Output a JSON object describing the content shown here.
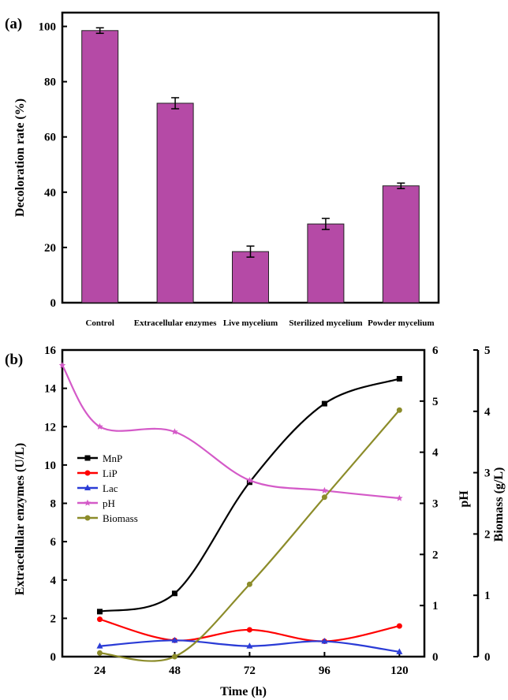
{
  "chart_data": [
    {
      "panel_label": "(a)",
      "type": "bar",
      "categories": [
        "Control",
        "Extracellular enzymes",
        "Live mycelium",
        "Sterilized mycelium",
        "Powder mycelium"
      ],
      "values": [
        98.5,
        72.2,
        18.5,
        28.5,
        42.3
      ],
      "errors": [
        1.0,
        2.0,
        2.0,
        2.0,
        1.0
      ],
      "ylabel": "Decoloration rate (%)",
      "xlabel": "",
      "ylim": [
        0,
        105
      ],
      "yticks": [
        "0",
        "20",
        "40",
        "60",
        "80",
        "100"
      ],
      "bar_color": "#b54aa6",
      "grid": false
    },
    {
      "panel_label": "(b)",
      "type": "line",
      "xlabel": "Time (h)",
      "xlim": [
        12,
        128
      ],
      "xticks": [
        "24",
        "48",
        "72",
        "96",
        "120"
      ],
      "legend_position": "left-center",
      "y_axes": [
        {
          "label": "Extracellular enzymes (U/L)",
          "ylim": [
            0,
            16
          ],
          "ticks": [
            "0",
            "2",
            "4",
            "6",
            "8",
            "10",
            "12",
            "14",
            "16"
          ]
        },
        {
          "label": "pH",
          "ylim": [
            0,
            6
          ],
          "ticks": [
            "0",
            "1",
            "2",
            "3",
            "4",
            "5",
            "6"
          ]
        },
        {
          "label": "Biomass (g/L)",
          "ylim": [
            0,
            5
          ],
          "ticks": [
            "0",
            "1",
            "2",
            "3",
            "4",
            "5"
          ]
        }
      ],
      "series": [
        {
          "name": "MnP",
          "color": "#000000",
          "marker": "square",
          "axis": 0,
          "x": [
            24,
            48,
            72,
            96,
            120
          ],
          "y": [
            2.35,
            3.3,
            9.1,
            13.2,
            14.5
          ]
        },
        {
          "name": "LiP",
          "color": "#ff0000",
          "marker": "circle",
          "axis": 0,
          "x": [
            24,
            48,
            72,
            96,
            120
          ],
          "y": [
            1.95,
            0.85,
            1.4,
            0.8,
            1.6
          ]
        },
        {
          "name": "Lac",
          "color": "#2a3bd6",
          "marker": "triangle",
          "axis": 0,
          "x": [
            24,
            48,
            72,
            96,
            120
          ],
          "y": [
            0.55,
            0.85,
            0.55,
            0.8,
            0.25
          ]
        },
        {
          "name": "pH",
          "color": "#d45ac8",
          "marker": "star",
          "axis": 1,
          "x": [
            12,
            24,
            48,
            72,
            96,
            120
          ],
          "y": [
            5.7,
            4.5,
            4.4,
            3.45,
            3.25,
            3.1
          ]
        },
        {
          "name": "Biomass",
          "color": "#8c8c2a",
          "marker": "circle",
          "axis": 2,
          "x": [
            24,
            48,
            72,
            96,
            120
          ],
          "y": [
            0.06,
            0.0,
            1.18,
            2.6,
            4.02
          ]
        }
      ]
    }
  ]
}
